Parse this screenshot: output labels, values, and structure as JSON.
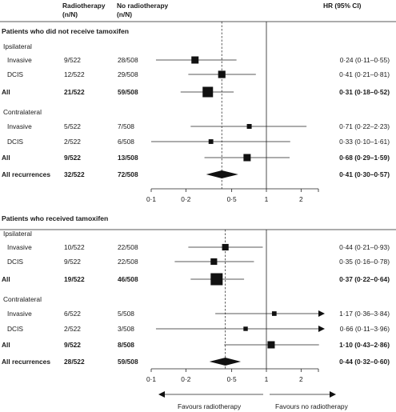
{
  "chart_data": {
    "type": "forest",
    "title": "",
    "columns": {
      "radiotherapy": "Radiotherapy (n/N)",
      "no_radiotherapy": "No radiotherapy (n/N)",
      "hr": "HR (95% CI)"
    },
    "x_scale": "log",
    "x_ticks": [
      "0·1",
      "0·2",
      "0·5",
      "1",
      "2"
    ],
    "x_tick_values": [
      0.1,
      0.2,
      0.5,
      1,
      2
    ],
    "xlim": [
      0.1,
      3.6
    ],
    "left_arrow_label": "Favours radiotherapy",
    "right_arrow_label": "Favours no radiotherapy",
    "panels": [
      {
        "title": "Patients who did not receive tamoxifen",
        "overall_dashed_hr": 0.41,
        "rows": [
          {
            "kind": "group",
            "label": "Ipsilateral"
          },
          {
            "kind": "study",
            "label": "Invasive",
            "rt": "9/522",
            "nort": "28/508",
            "hr": 0.24,
            "lo": 0.11,
            "hi": 0.55,
            "hr_text": "0·24 (0·11–0·55)"
          },
          {
            "kind": "study",
            "label": "DCIS",
            "rt": "12/522",
            "nort": "29/508",
            "hr": 0.41,
            "lo": 0.21,
            "hi": 0.81,
            "hr_text": "0·41 (0·21–0·81)"
          },
          {
            "kind": "subtotal",
            "label": "All",
            "rt": "21/522",
            "nort": "59/508",
            "hr": 0.31,
            "lo": 0.18,
            "hi": 0.52,
            "hr_text": "0·31 (0·18–0·52)"
          },
          {
            "kind": "group",
            "label": "Contralateral"
          },
          {
            "kind": "study",
            "label": "Invasive",
            "rt": "5/522",
            "nort": "7/508",
            "hr": 0.71,
            "lo": 0.22,
            "hi": 2.23,
            "hr_text": "0·71 (0·22–2·23)"
          },
          {
            "kind": "study",
            "label": "DCIS",
            "rt": "2/522",
            "nort": "6/508",
            "hr": 0.33,
            "lo": 0.1,
            "hi": 1.61,
            "hr_text": "0·33 (0·10–1·61)"
          },
          {
            "kind": "subtotal",
            "label": "All",
            "rt": "9/522",
            "nort": "13/508",
            "hr": 0.68,
            "lo": 0.29,
            "hi": 1.59,
            "hr_text": "0·68 (0·29–1·59)"
          },
          {
            "kind": "overall",
            "label": "All recurrences",
            "rt": "32/522",
            "nort": "72/508",
            "hr": 0.41,
            "lo": 0.3,
            "hi": 0.57,
            "hr_text": "0·41 (0·30–0·57)"
          }
        ]
      },
      {
        "title": "Patients who received tamoxifen",
        "overall_dashed_hr": 0.44,
        "rows": [
          {
            "kind": "group",
            "label": "Ipsilateral"
          },
          {
            "kind": "study",
            "label": "Invasive",
            "rt": "10/522",
            "nort": "22/508",
            "hr": 0.44,
            "lo": 0.21,
            "hi": 0.93,
            "hr_text": "0·44 (0·21–0·93)"
          },
          {
            "kind": "study",
            "label": "DCIS",
            "rt": "9/522",
            "nort": "22/508",
            "hr": 0.35,
            "lo": 0.16,
            "hi": 0.78,
            "hr_text": "0·35 (0·16–0·78)"
          },
          {
            "kind": "subtotal",
            "label": "All",
            "rt": "19/522",
            "nort": "46/508",
            "hr": 0.37,
            "lo": 0.22,
            "hi": 0.64,
            "hr_text": "0·37 (0·22–0·64)"
          },
          {
            "kind": "group",
            "label": "Contralateral"
          },
          {
            "kind": "study",
            "label": "Invasive",
            "rt": "6/522",
            "nort": "5/508",
            "hr": 1.17,
            "lo": 0.36,
            "hi": 3.84,
            "hr_text": "1·17 (0·36–3·84)",
            "arrow_right": true
          },
          {
            "kind": "study",
            "label": "DCIS",
            "rt": "2/522",
            "nort": "3/508",
            "hr": 0.66,
            "lo": 0.11,
            "hi": 3.96,
            "hr_text": "0·66 (0·11–3·96)",
            "arrow_right": true
          },
          {
            "kind": "subtotal",
            "label": "All",
            "rt": "9/522",
            "nort": "8/508",
            "hr": 1.1,
            "lo": 0.43,
            "hi": 2.86,
            "hr_text": "1·10 (0·43–2·86)"
          },
          {
            "kind": "overall",
            "label": "All recurrences",
            "rt": "28/522",
            "nort": "59/508",
            "hr": 0.44,
            "lo": 0.32,
            "hi": 0.6,
            "hr_text": "0·44 (0·32–0·60)"
          }
        ]
      }
    ]
  }
}
